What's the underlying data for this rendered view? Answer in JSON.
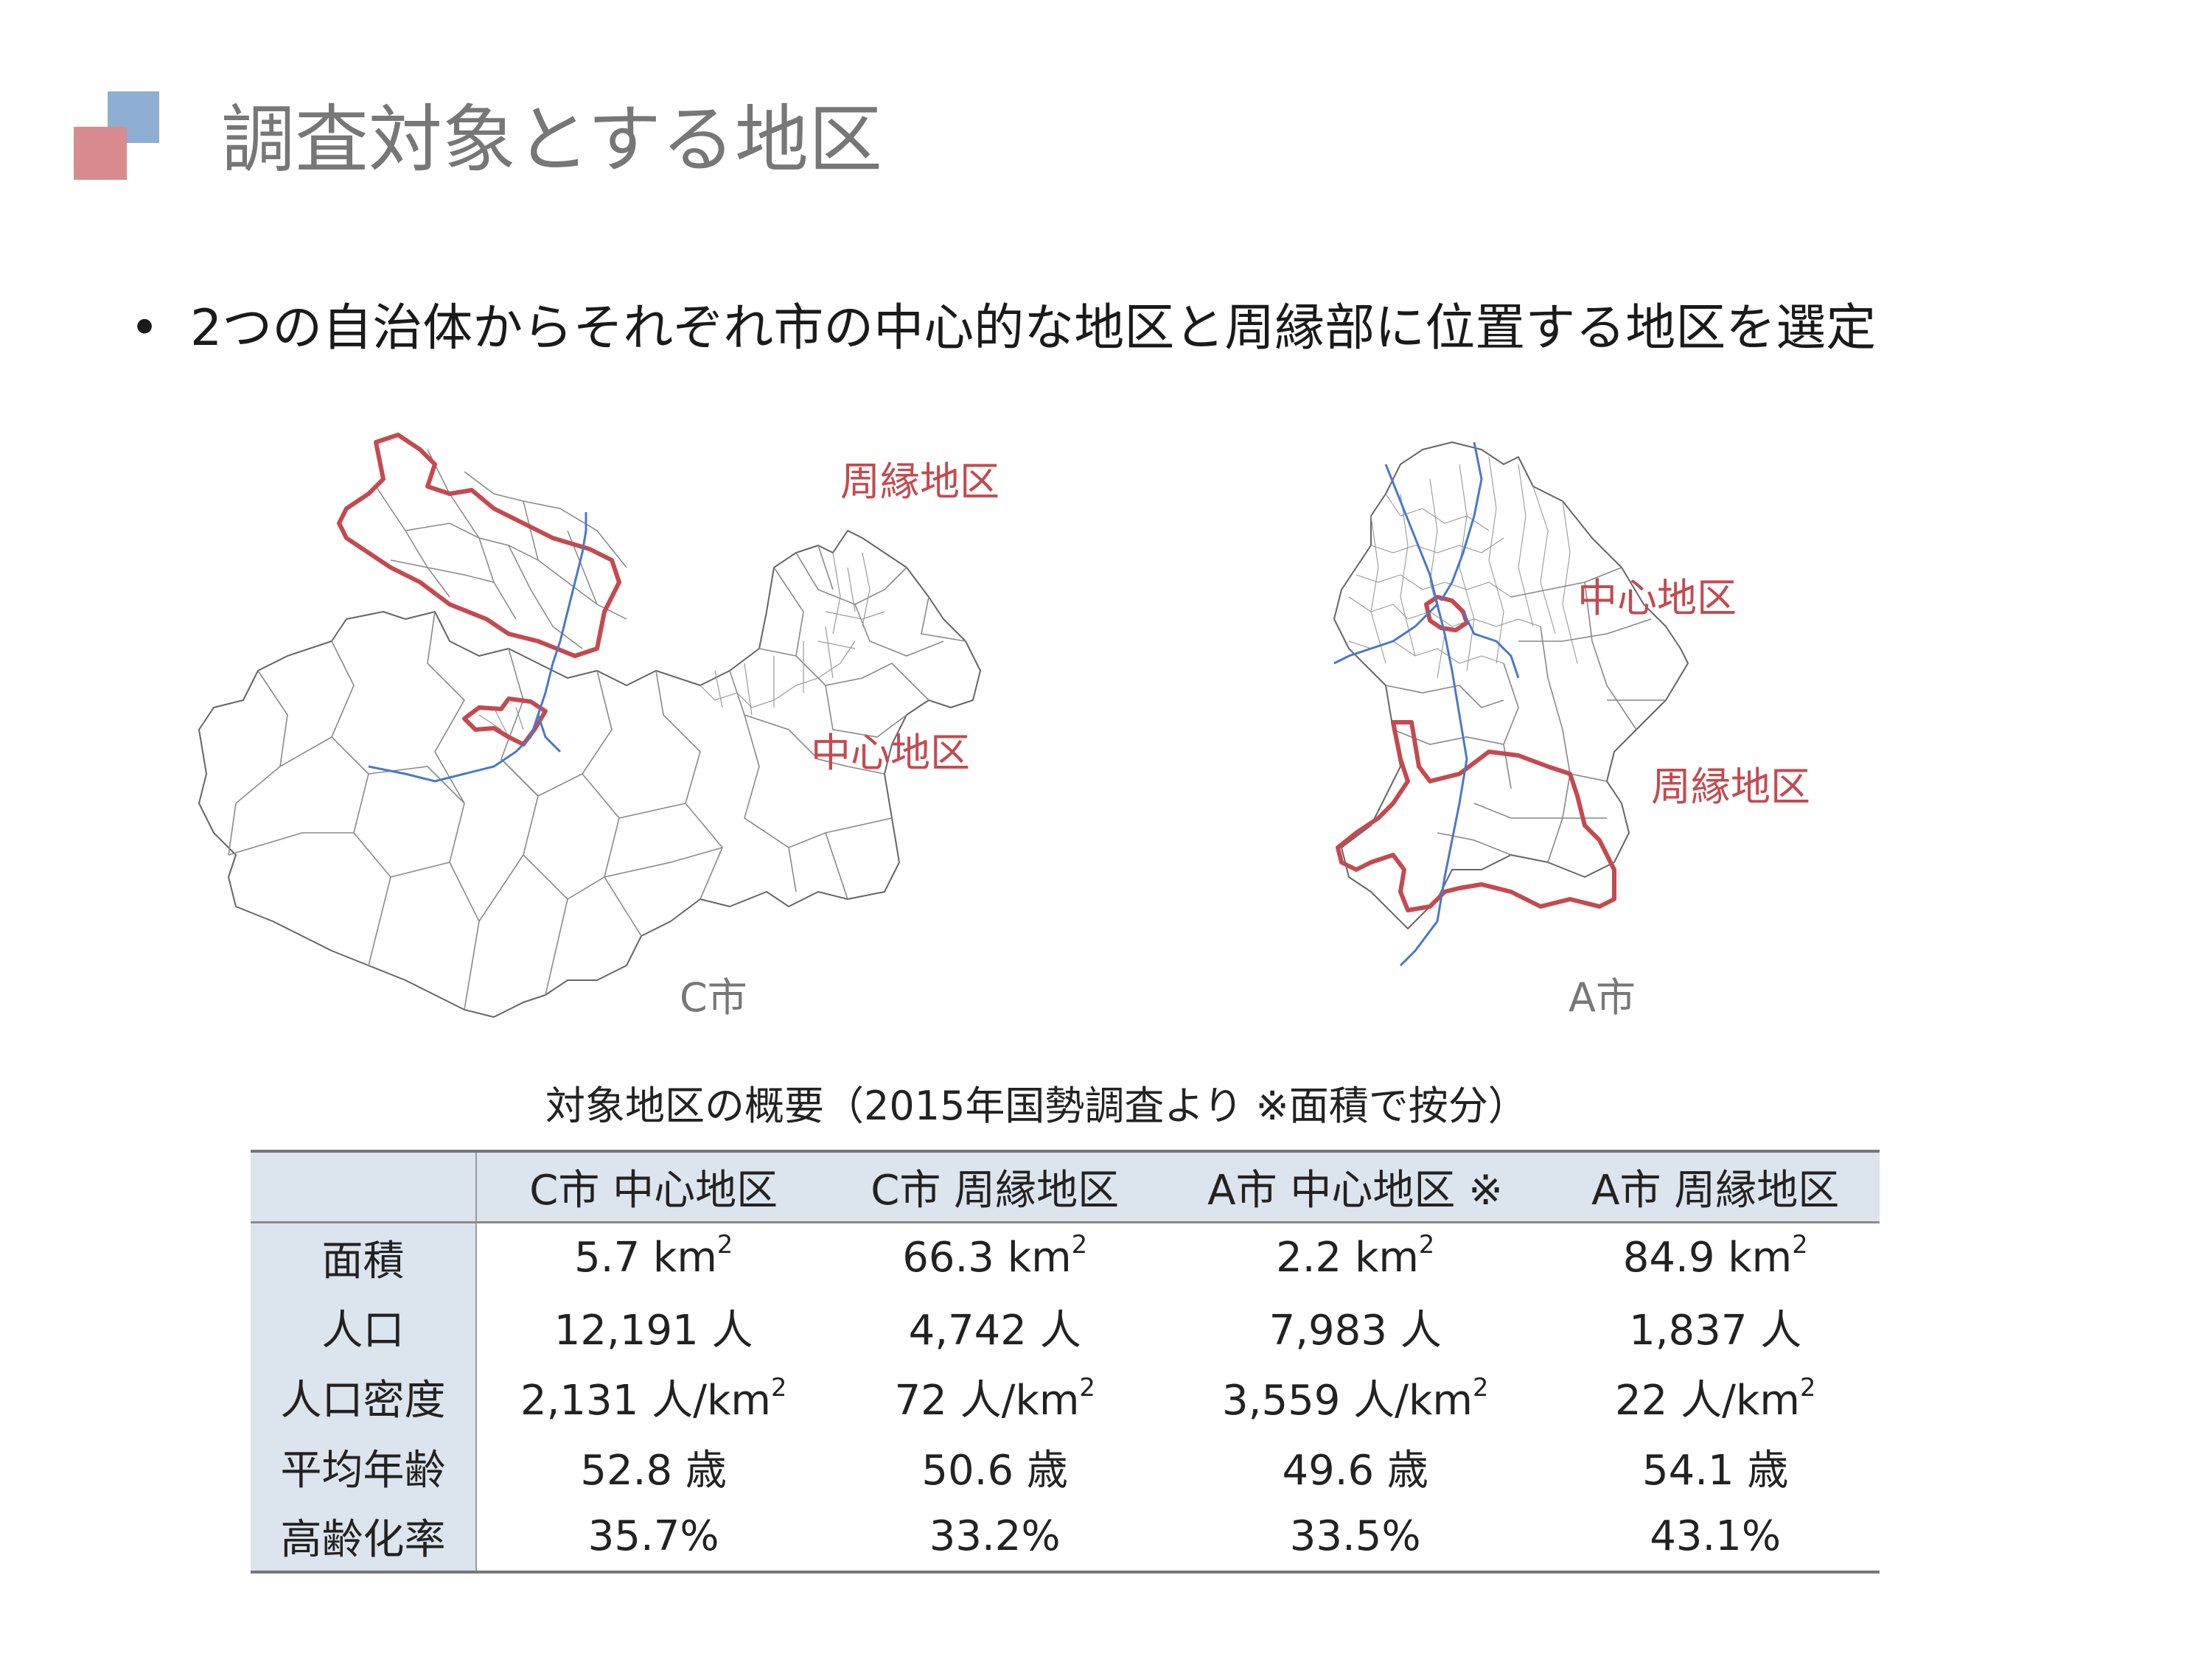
{
  "slide": {
    "title": "調査対象とする地区",
    "bullet": "2つの自治体からそれぞれ市の中心的な地区と周縁部に位置する地区を選定",
    "colors": {
      "logo_blue": "#8eaed3",
      "logo_red": "#d88c90",
      "highlight": "#c44a50",
      "river": "#4a78c8",
      "table_header": "#dce4ee"
    }
  },
  "maps": {
    "c_city": {
      "name": "C市",
      "peripheral_label": "周縁地区",
      "central_label": "中心地区"
    },
    "a_city": {
      "name": "A市",
      "peripheral_label": "周縁地区",
      "central_label": "中心地区"
    }
  },
  "table": {
    "caption": "対象地区の概要（2015年国勢調査より ※面積で按分）",
    "columns": [
      "C市 中心地区",
      "C市 周縁地区",
      "A市 中心地区 ※",
      "A市 周縁地区"
    ],
    "rows": [
      {
        "label": "面積",
        "cells": [
          "5.7 km",
          "66.3 km",
          "2.2 km",
          "84.9 km"
        ],
        "sup": "2"
      },
      {
        "label": "人口",
        "cells": [
          "12,191 人",
          "4,742 人",
          "7,983 人",
          "1,837 人"
        ]
      },
      {
        "label": "人口密度",
        "cells": [
          "2,131 人/km",
          "72 人/km",
          "3,559 人/km",
          "22 人/km"
        ],
        "sup": "2"
      },
      {
        "label": "平均年齢",
        "cells": [
          "52.8 歳",
          "50.6 歳",
          "49.6 歳",
          "54.1 歳"
        ]
      },
      {
        "label": "高齢化率",
        "cells": [
          "35.7%",
          "33.2%",
          "33.5%",
          "43.1%"
        ]
      }
    ]
  }
}
